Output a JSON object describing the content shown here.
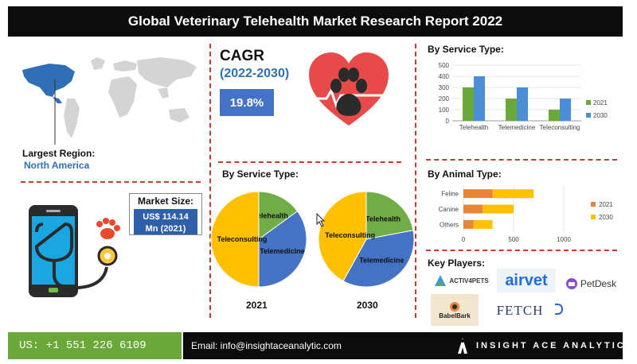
{
  "header": {
    "title": "Global Veterinary Telehealth Market Research Report 2022"
  },
  "region": {
    "label": "Largest Region:",
    "value": "North America"
  },
  "cagr": {
    "label": "CAGR",
    "years": "(2022-2030)",
    "value": "19.8%"
  },
  "market_size": {
    "label": "Market Size:",
    "value_line1": "US$ 114.14",
    "value_line2": "Mn (2021)"
  },
  "service_pies": {
    "title": "By Service Type:",
    "year_2021": "2021",
    "year_2030": "2030"
  },
  "service_bars": {
    "title": "By Service Type:"
  },
  "animal_bars": {
    "title": "By Animal Type:"
  },
  "key_players": {
    "title": "Key Players:",
    "logos": [
      "ACTIV4PETS",
      "airvet",
      "PetDesk",
      "BabelBark",
      "FETCH"
    ]
  },
  "footer": {
    "phone": "US: +1 551 226 6109",
    "email": "Email: info@insightaceanalytic.com",
    "brand": "INSIGHT ACE ANALYTIC"
  },
  "colors": {
    "green": "#6aa83a",
    "blue": "#4a8fd6",
    "orange": "#e8833a",
    "yellow": "#ffc000",
    "pie_green": "#70ad47",
    "pie_blue": "#4472c4",
    "pie_yellow": "#ffc000"
  },
  "chart_data": [
    {
      "type": "bar",
      "title": "By Service Type:",
      "categories": [
        "Telehealth",
        "Telemedicine",
        "Teleconsulting"
      ],
      "series": [
        {
          "name": "2021",
          "values": [
            300,
            200,
            100
          ]
        },
        {
          "name": "2030",
          "values": [
            400,
            300,
            200
          ]
        }
      ],
      "ylim": [
        0,
        500
      ],
      "yticks": [
        0,
        100,
        200,
        300,
        400,
        500
      ],
      "legend": "right"
    },
    {
      "type": "bar",
      "orientation": "horizontal",
      "stacked": true,
      "title": "By Animal Type:",
      "categories": [
        "Feline",
        "Canine",
        "Others"
      ],
      "series": [
        {
          "name": "2021",
          "values": [
            290,
            190,
            100
          ]
        },
        {
          "name": "2030",
          "values": [
            410,
            310,
            190
          ]
        }
      ],
      "xlim": [
        0,
        1000
      ],
      "xticks": [
        0,
        500,
        1000
      ],
      "legend": "right"
    },
    {
      "type": "pie",
      "title": "2021",
      "labels": [
        "Telehealth",
        "Telemedicine",
        "Teleconsulting"
      ],
      "values": [
        15,
        35,
        50
      ]
    },
    {
      "type": "pie",
      "title": "2030",
      "labels": [
        "Telehealth",
        "Telemedicine",
        "Teleconsulting"
      ],
      "values": [
        22,
        36,
        42
      ]
    }
  ]
}
